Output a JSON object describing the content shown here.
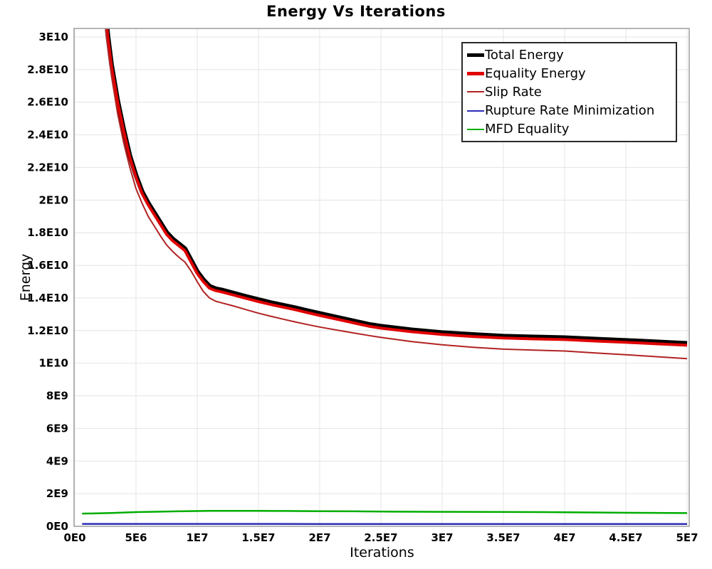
{
  "chart_data": {
    "type": "line",
    "title": "Energy Vs Iterations",
    "xlabel": "Iterations",
    "ylabel": "Energy",
    "xlim": [
      0,
      50000000.0
    ],
    "ylim": [
      0,
      30000000000.0
    ],
    "grid": true,
    "legend_position": "top-right",
    "axis_colors": {
      "frame": "#9e9e9e",
      "gridline": "#e4e4e4",
      "tick_text": "#000000"
    },
    "xticks": [
      {
        "label": "0E0",
        "value": 0
      },
      {
        "label": "5E6",
        "value": 5000000.0
      },
      {
        "label": "1E7",
        "value": 10000000.0
      },
      {
        "label": "1.5E7",
        "value": 15000000.0
      },
      {
        "label": "2E7",
        "value": 20000000.0
      },
      {
        "label": "2.5E7",
        "value": 25000000.0
      },
      {
        "label": "3E7",
        "value": 30000000.0
      },
      {
        "label": "3.5E7",
        "value": 35000000.0
      },
      {
        "label": "4E7",
        "value": 40000000.0
      },
      {
        "label": "4.5E7",
        "value": 45000000.0
      },
      {
        "label": "5E7",
        "value": 50000000.0
      }
    ],
    "yticks": [
      {
        "label": "0E0",
        "value": 0
      },
      {
        "label": "2E9",
        "value": 2000000000.0
      },
      {
        "label": "4E9",
        "value": 4000000000.0
      },
      {
        "label": "6E9",
        "value": 6000000000.0
      },
      {
        "label": "8E9",
        "value": 8000000000.0
      },
      {
        "label": "1E10",
        "value": 10000000000.0
      },
      {
        "label": "1.2E10",
        "value": 12000000000.0
      },
      {
        "label": "1.4E10",
        "value": 14000000000.0
      },
      {
        "label": "1.6E10",
        "value": 16000000000.0
      },
      {
        "label": "1.8E10",
        "value": 18000000000.0
      },
      {
        "label": "2E10",
        "value": 20000000000.0
      },
      {
        "label": "2.2E10",
        "value": 22000000000.0
      },
      {
        "label": "2.4E10",
        "value": 24000000000.0
      },
      {
        "label": "2.6E10",
        "value": 26000000000.0
      },
      {
        "label": "2.8E10",
        "value": 28000000000.0
      },
      {
        "label": "3E10",
        "value": 30000000000.0
      }
    ],
    "series": [
      {
        "name": "Total Energy",
        "color": "#000000",
        "stroke_width": 6.5,
        "legend_stroke": 5,
        "points": [
          [
            2200000.0,
            34120000000.0
          ],
          [
            2700000.0,
            30120000000.0
          ],
          [
            3000000.0,
            28320000000.0
          ],
          [
            3500000.0,
            26120000000.0
          ],
          [
            4000000.0,
            24320000000.0
          ],
          [
            4500000.0,
            22720000000.0
          ],
          [
            5000000.0,
            21520000000.0
          ],
          [
            5500000.0,
            20520000000.0
          ],
          [
            6000000.0,
            19820000000.0
          ],
          [
            6500000.0,
            19220000000.0
          ],
          [
            7000000.0,
            18620000000.0
          ],
          [
            7500000.0,
            18020000000.0
          ],
          [
            8000000.0,
            17620000000.0
          ],
          [
            8500000.0,
            17320000000.0
          ],
          [
            9000000.0,
            17020000000.0
          ],
          [
            9500000.0,
            16320000000.0
          ],
          [
            10000000.0,
            15620000000.0
          ],
          [
            10500000.0,
            15120000000.0
          ],
          [
            11000000.0,
            14720000000.0
          ],
          [
            11500000.0,
            14570000000.0
          ],
          [
            12000000.0,
            14490000000.0
          ],
          [
            13000000.0,
            14290000000.0
          ],
          [
            14000000.0,
            14090000000.0
          ],
          [
            15000000.0,
            13900000000.0
          ],
          [
            16000000.0,
            13720000000.0
          ],
          [
            17000000.0,
            13560000000.0
          ],
          [
            18000000.0,
            13400000000.0
          ],
          [
            19000000.0,
            13220000000.0
          ],
          [
            20000000.0,
            13050000000.0
          ],
          [
            22000000.0,
            12720000000.0
          ],
          [
            24000000.0,
            12390000000.0
          ],
          [
            25000000.0,
            12270000000.0
          ],
          [
            27500000.0,
            12050000000.0
          ],
          [
            30000000.0,
            11880000000.0
          ],
          [
            32500000.0,
            11760000000.0
          ],
          [
            35000000.0,
            11660000000.0
          ],
          [
            37500000.0,
            11610000000.0
          ],
          [
            40000000.0,
            11570000000.0
          ],
          [
            42500000.0,
            11480000000.0
          ],
          [
            45000000.0,
            11400000000.0
          ],
          [
            47500000.0,
            11310000000.0
          ],
          [
            50000000.0,
            11220000000.0
          ]
        ]
      },
      {
        "name": "Equality Energy",
        "color": "#e00000",
        "stroke_width": 4,
        "legend_stroke": 5,
        "points": [
          [
            2200000.0,
            34000000000.0
          ],
          [
            2700000.0,
            30000000000.0
          ],
          [
            3000000.0,
            28200000000.0
          ],
          [
            3500000.0,
            26000000000.0
          ],
          [
            4000000.0,
            24200000000.0
          ],
          [
            4500000.0,
            22600000000.0
          ],
          [
            5000000.0,
            21400000000.0
          ],
          [
            5500000.0,
            20400000000.0
          ],
          [
            6000000.0,
            19700000000.0
          ],
          [
            6500000.0,
            19100000000.0
          ],
          [
            7000000.0,
            18500000000.0
          ],
          [
            7500000.0,
            17900000000.0
          ],
          [
            8000000.0,
            17500000000.0
          ],
          [
            8500000.0,
            17200000000.0
          ],
          [
            9000000.0,
            16900000000.0
          ],
          [
            9500000.0,
            16200000000.0
          ],
          [
            10000000.0,
            15500000000.0
          ],
          [
            10500000.0,
            15000000000.0
          ],
          [
            11000000.0,
            14600000000.0
          ],
          [
            11500000.0,
            14450000000.0
          ],
          [
            12000000.0,
            14370000000.0
          ],
          [
            13000000.0,
            14170000000.0
          ],
          [
            14000000.0,
            13970000000.0
          ],
          [
            15000000.0,
            13780000000.0
          ],
          [
            16000000.0,
            13600000000.0
          ],
          [
            17000000.0,
            13440000000.0
          ],
          [
            18000000.0,
            13280000000.0
          ],
          [
            19000000.0,
            13100000000.0
          ],
          [
            20000000.0,
            12930000000.0
          ],
          [
            22000000.0,
            12600000000.0
          ],
          [
            24000000.0,
            12270000000.0
          ],
          [
            25000000.0,
            12150000000.0
          ],
          [
            27500000.0,
            11930000000.0
          ],
          [
            30000000.0,
            11760000000.0
          ],
          [
            32500000.0,
            11640000000.0
          ],
          [
            35000000.0,
            11540000000.0
          ],
          [
            37500000.0,
            11490000000.0
          ],
          [
            40000000.0,
            11450000000.0
          ],
          [
            42500000.0,
            11360000000.0
          ],
          [
            45000000.0,
            11280000000.0
          ],
          [
            47500000.0,
            11190000000.0
          ],
          [
            50000000.0,
            11100000000.0
          ]
        ]
      },
      {
        "name": "Slip Rate",
        "color": "#b22222",
        "stroke_width": 2,
        "legend_stroke": 2,
        "points": [
          [
            2100000.0,
            34000000000.0
          ],
          [
            2600000.0,
            29900000000.0
          ],
          [
            3000000.0,
            27600000000.0
          ],
          [
            3500000.0,
            25300000000.0
          ],
          [
            4000000.0,
            23500000000.0
          ],
          [
            4500000.0,
            22000000000.0
          ],
          [
            5000000.0,
            20700000000.0
          ],
          [
            5500000.0,
            19800000000.0
          ],
          [
            6000000.0,
            19000000000.0
          ],
          [
            6500000.0,
            18400000000.0
          ],
          [
            7000000.0,
            17800000000.0
          ],
          [
            7500000.0,
            17250000000.0
          ],
          [
            8000000.0,
            16850000000.0
          ],
          [
            8500000.0,
            16500000000.0
          ],
          [
            9000000.0,
            16200000000.0
          ],
          [
            9500000.0,
            15650000000.0
          ],
          [
            10000000.0,
            15000000000.0
          ],
          [
            10500000.0,
            14400000000.0
          ],
          [
            11000000.0,
            14000000000.0
          ],
          [
            11500000.0,
            13800000000.0
          ],
          [
            12000000.0,
            13700000000.0
          ],
          [
            13000000.0,
            13500000000.0
          ],
          [
            14000000.0,
            13280000000.0
          ],
          [
            15000000.0,
            13070000000.0
          ],
          [
            16000000.0,
            12880000000.0
          ],
          [
            17000000.0,
            12700000000.0
          ],
          [
            18000000.0,
            12530000000.0
          ],
          [
            19000000.0,
            12370000000.0
          ],
          [
            20000000.0,
            12220000000.0
          ],
          [
            22000000.0,
            11950000000.0
          ],
          [
            24000000.0,
            11700000000.0
          ],
          [
            25000000.0,
            11580000000.0
          ],
          [
            27500000.0,
            11330000000.0
          ],
          [
            30000000.0,
            11130000000.0
          ],
          [
            32500000.0,
            10980000000.0
          ],
          [
            35000000.0,
            10860000000.0
          ],
          [
            37500000.0,
            10800000000.0
          ],
          [
            40000000.0,
            10750000000.0
          ],
          [
            42500000.0,
            10630000000.0
          ],
          [
            45000000.0,
            10520000000.0
          ],
          [
            47500000.0,
            10400000000.0
          ],
          [
            50000000.0,
            10280000000.0
          ]
        ]
      },
      {
        "name": "Rupture Rate Minimization",
        "color": "#2d2db8",
        "stroke_width": 2.5,
        "legend_stroke": 2,
        "points": [
          [
            600000.0,
            150000000.0
          ],
          [
            5000000.0,
            150000000.0
          ],
          [
            10000000.0,
            150000000.0
          ],
          [
            20000000.0,
            145000000.0
          ],
          [
            30000000.0,
            140000000.0
          ],
          [
            40000000.0,
            140000000.0
          ],
          [
            50000000.0,
            140000000.0
          ]
        ]
      },
      {
        "name": "MFD Equality",
        "color": "#00ad00",
        "stroke_width": 2.5,
        "legend_stroke": 2.5,
        "points": [
          [
            600000.0,
            780000000.0
          ],
          [
            1500000.0,
            790000000.0
          ],
          [
            3000000.0,
            820000000.0
          ],
          [
            5000000.0,
            870000000.0
          ],
          [
            7000000.0,
            900000000.0
          ],
          [
            9000000.0,
            930000000.0
          ],
          [
            11000000.0,
            945000000.0
          ],
          [
            13000000.0,
            950000000.0
          ],
          [
            15000000.0,
            945000000.0
          ],
          [
            17000000.0,
            940000000.0
          ],
          [
            20000000.0,
            930000000.0
          ],
          [
            23000000.0,
            920000000.0
          ],
          [
            26000000.0,
            900000000.0
          ],
          [
            30000000.0,
            890000000.0
          ],
          [
            34000000.0,
            880000000.0
          ],
          [
            38000000.0,
            870000000.0
          ],
          [
            42000000.0,
            850000000.0
          ],
          [
            46000000.0,
            830000000.0
          ],
          [
            50000000.0,
            810000000.0
          ]
        ]
      }
    ]
  }
}
